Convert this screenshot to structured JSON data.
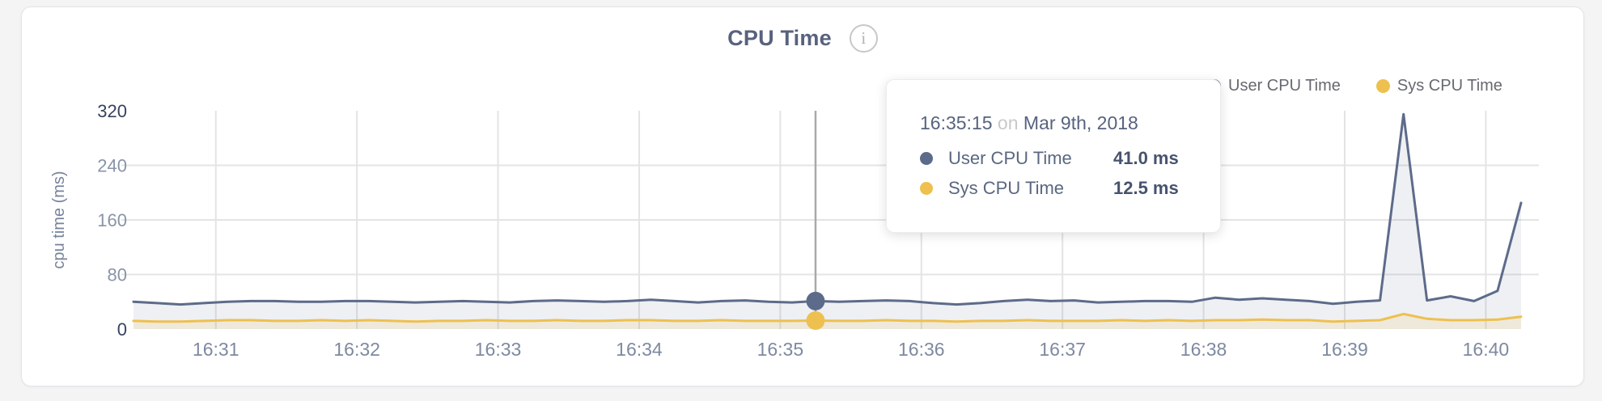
{
  "header": {
    "title": "CPU Time",
    "info_glyph": "i"
  },
  "legend": {
    "items": [
      {
        "label": "User CPU Time",
        "color": "#5d6b8a"
      },
      {
        "label": "Sys CPU Time",
        "color": "#eec04f"
      }
    ]
  },
  "tooltip": {
    "time": "16:35:15",
    "connector": "on",
    "date": "Mar 9th, 2018",
    "rows": [
      {
        "label": "User CPU Time",
        "value": "41.0 ms",
        "color": "#5d6b8a"
      },
      {
        "label": "Sys CPU Time",
        "value": "12.5 ms",
        "color": "#eec04f"
      }
    ]
  },
  "chart_data": {
    "type": "area",
    "title": "CPU Time",
    "ylabel": "cpu time (ms)",
    "ylim": [
      0,
      320
    ],
    "yticks": [
      0,
      80,
      160,
      240,
      320
    ],
    "xticks": [
      "16:31",
      "16:32",
      "16:33",
      "16:34",
      "16:35",
      "16:36",
      "16:37",
      "16:38",
      "16:39",
      "16:40"
    ],
    "x_start": "16:30:25",
    "sample_interval_s": 10,
    "grid": true,
    "legend_position": "top-right",
    "series": [
      {
        "name": "User CPU Time",
        "color": "#5d6b8a",
        "fill": "rgba(93,107,138,0.10)",
        "values": [
          40,
          38,
          36,
          38,
          40,
          41,
          41,
          40,
          40,
          41,
          41,
          40,
          39,
          40,
          41,
          40,
          39,
          41,
          42,
          41,
          40,
          41,
          43,
          41,
          39,
          41,
          42,
          40,
          39,
          41,
          40,
          41,
          42,
          41,
          38,
          36,
          38,
          41,
          43,
          41,
          42,
          39,
          40,
          41,
          41,
          40,
          46,
          43,
          45,
          43,
          41,
          37,
          40,
          42,
          315,
          42,
          48,
          41,
          56,
          185
        ]
      },
      {
        "name": "Sys CPU Time",
        "color": "#eec04f",
        "fill": "rgba(238,192,79,0.14)",
        "values": [
          12,
          11,
          11,
          12,
          13,
          13,
          12,
          12,
          13,
          12,
          13,
          12,
          11,
          12,
          12,
          13,
          12,
          12,
          13,
          12,
          12,
          13,
          13,
          12,
          12,
          13,
          12,
          12,
          12,
          12.5,
          12,
          12,
          13,
          12,
          12,
          11,
          12,
          12,
          13,
          12,
          12,
          12,
          13,
          12,
          13,
          12,
          13,
          13,
          14,
          13,
          13,
          11,
          12,
          13,
          22,
          15,
          13,
          13,
          14,
          18
        ]
      }
    ],
    "hover": {
      "time": "16:35:15",
      "values": [
        41.0,
        12.5
      ],
      "crosshair_color": "#a9a9a9"
    },
    "axis_colors": {
      "tick_minmax": "#36425f",
      "tick_mid": "#8a94a8",
      "xtick": "#7e89a0",
      "ylabel": "#77839b",
      "gridline": "#e4e4e6"
    }
  }
}
